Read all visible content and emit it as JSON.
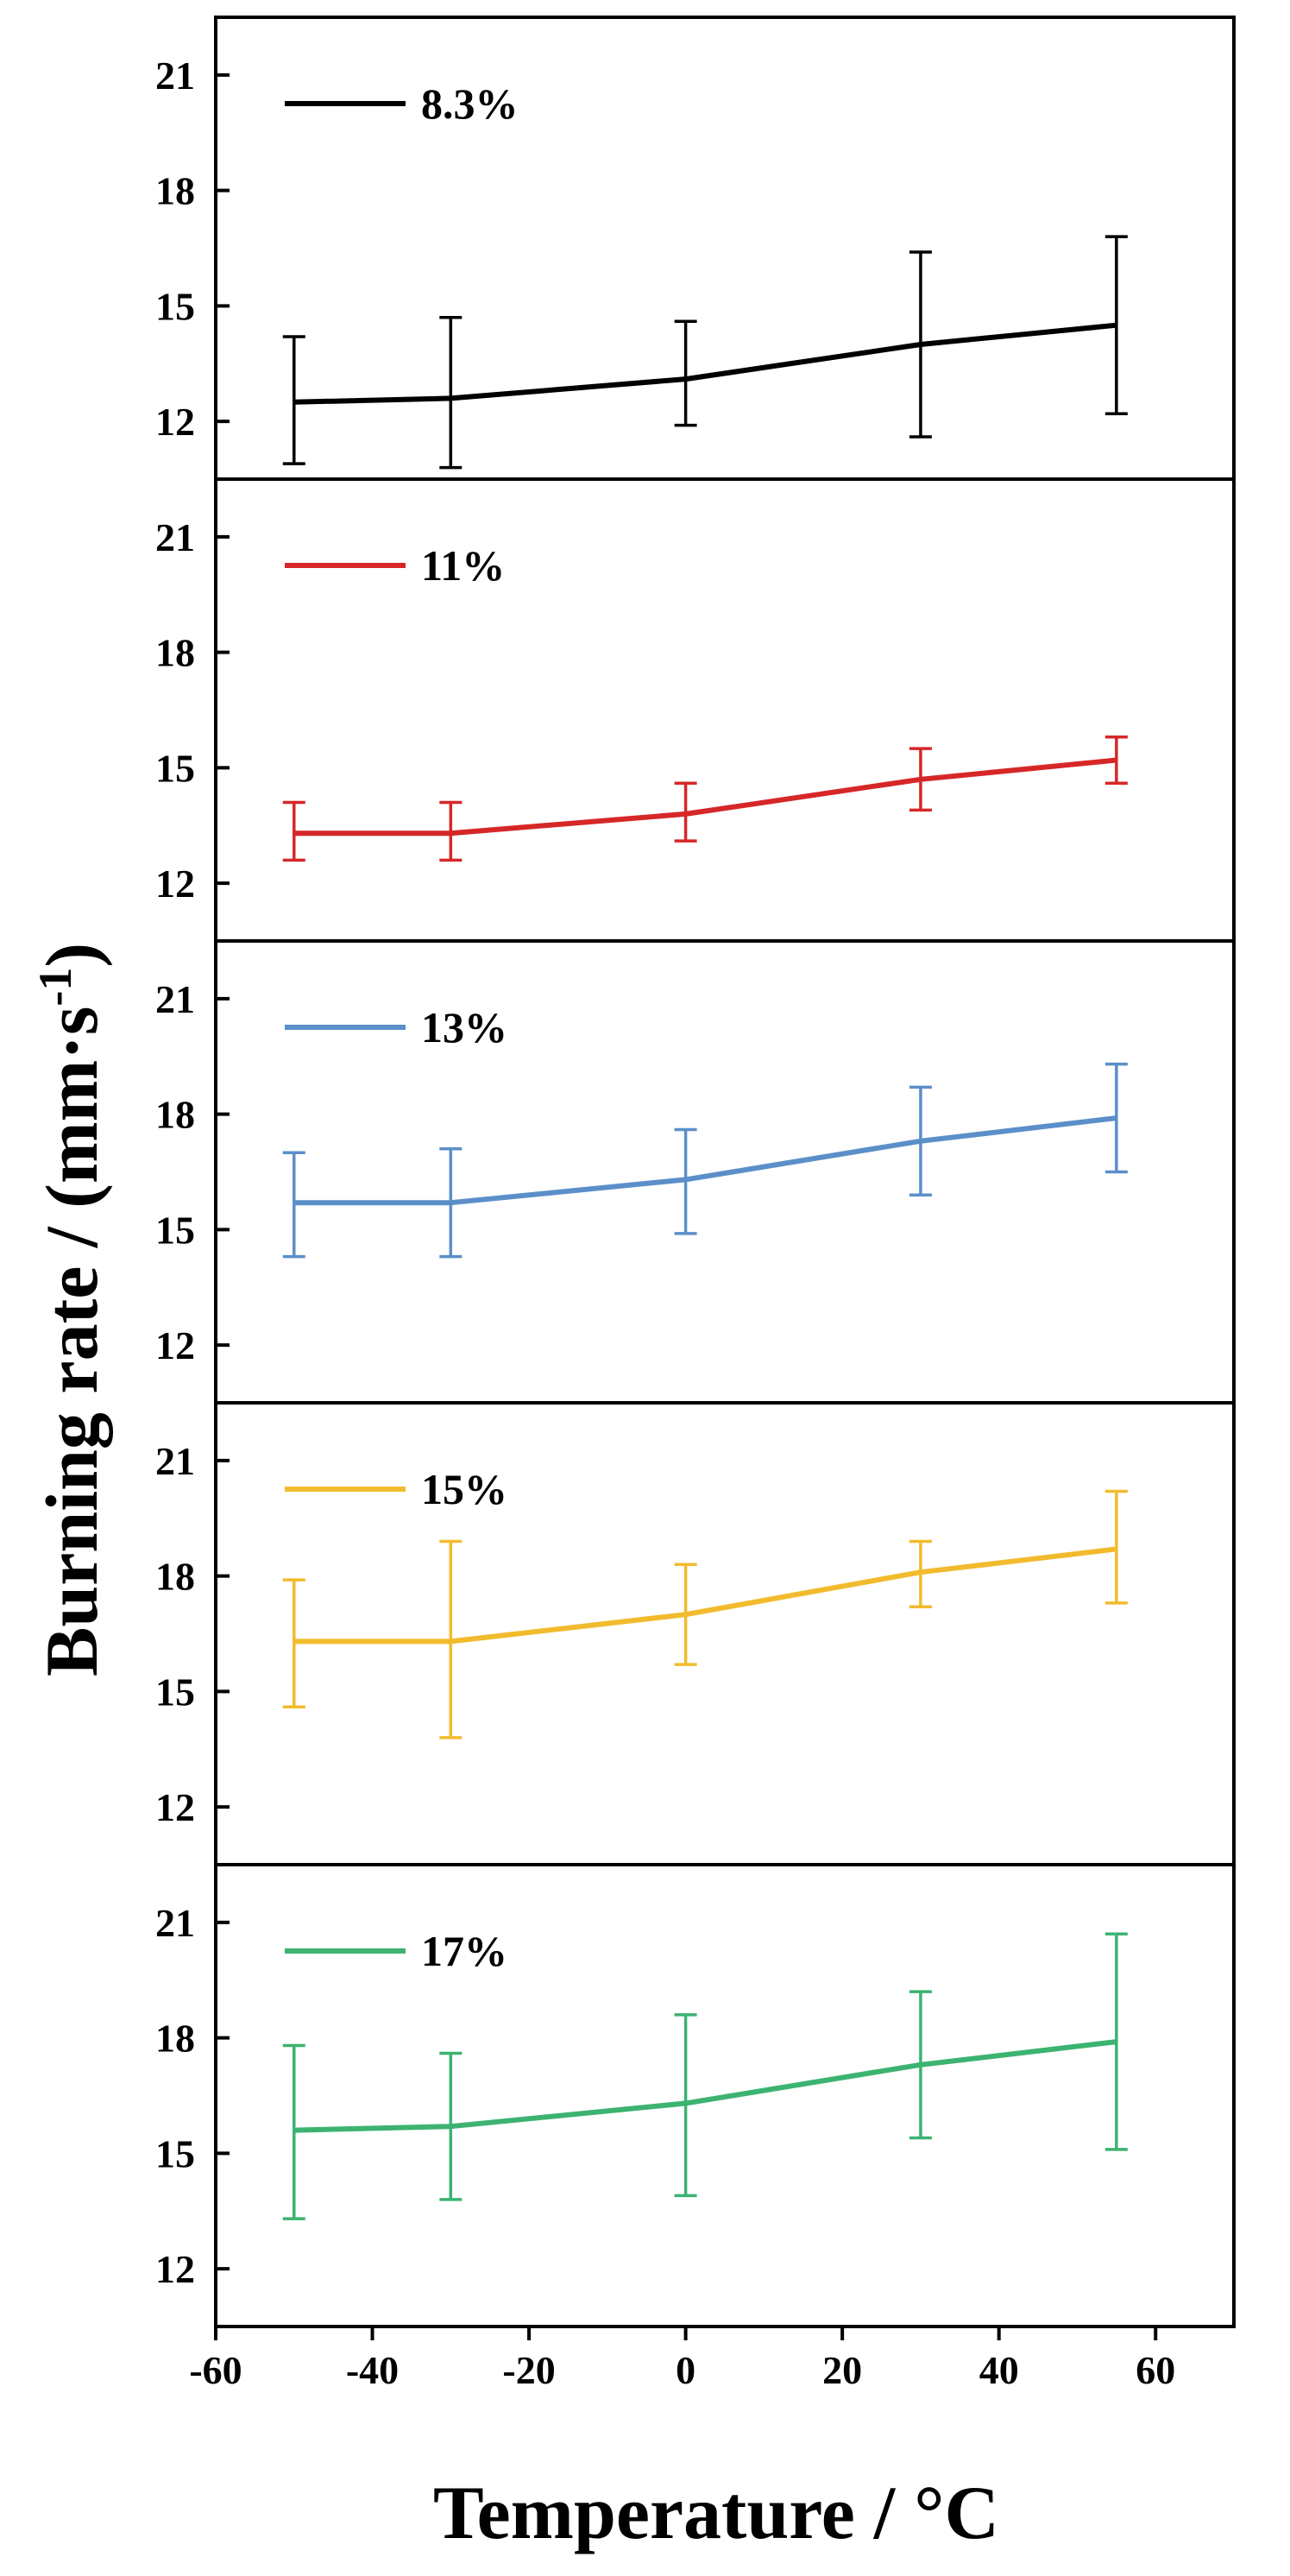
{
  "chart_data": {
    "type": "line",
    "layout": "stacked-panels",
    "xlabel": "Temperature / °C",
    "ylabel": "Burning rate / (mm·s",
    "ylabel_superscript": "-1",
    "ylabel_suffix": ")",
    "xlim": [
      -60,
      70
    ],
    "x_ticks": [
      -60,
      -40,
      -20,
      0,
      20,
      40,
      60
    ],
    "x_tick_labels": [
      "-60",
      "-40",
      "-20",
      "0",
      "20",
      "40",
      "60"
    ],
    "ylim": [
      10.5,
      22.5
    ],
    "y_ticks": [
      12,
      15,
      18,
      21
    ],
    "y_tick_labels": [
      "12",
      "15",
      "18",
      "21"
    ],
    "x": [
      -50,
      -30,
      0,
      30,
      55
    ],
    "series": [
      {
        "name": "8.3%",
        "color": "#000000",
        "values": [
          12.5,
          12.6,
          13.1,
          14.0,
          14.5
        ],
        "error_low": [
          10.9,
          10.8,
          11.9,
          11.6,
          12.2
        ],
        "error_high": [
          14.2,
          14.7,
          14.6,
          16.4,
          16.8
        ]
      },
      {
        "name": "11%",
        "color": "#d62728",
        "values": [
          13.3,
          13.3,
          13.8,
          14.7,
          15.2
        ],
        "error_low": [
          12.6,
          12.6,
          13.1,
          13.9,
          14.6
        ],
        "error_high": [
          14.1,
          14.1,
          14.6,
          15.5,
          15.8
        ]
      },
      {
        "name": "13%",
        "color": "#5b8fc9",
        "values": [
          15.7,
          15.7,
          16.3,
          17.3,
          17.9
        ],
        "error_low": [
          14.3,
          14.3,
          14.9,
          15.9,
          16.5
        ],
        "error_high": [
          17.0,
          17.1,
          17.6,
          18.7,
          19.3
        ]
      },
      {
        "name": "15%",
        "color": "#f2bb2e",
        "values": [
          16.3,
          16.3,
          17.0,
          18.1,
          18.7
        ],
        "error_low": [
          14.6,
          13.8,
          15.7,
          17.2,
          17.3
        ],
        "error_high": [
          17.9,
          18.9,
          18.3,
          18.9,
          20.2
        ]
      },
      {
        "name": "17%",
        "color": "#3cb371",
        "values": [
          15.6,
          15.7,
          16.3,
          17.3,
          17.9
        ],
        "error_low": [
          13.3,
          13.8,
          13.9,
          15.4,
          15.1
        ],
        "error_high": [
          17.8,
          17.6,
          18.6,
          19.2,
          20.7
        ]
      }
    ]
  }
}
